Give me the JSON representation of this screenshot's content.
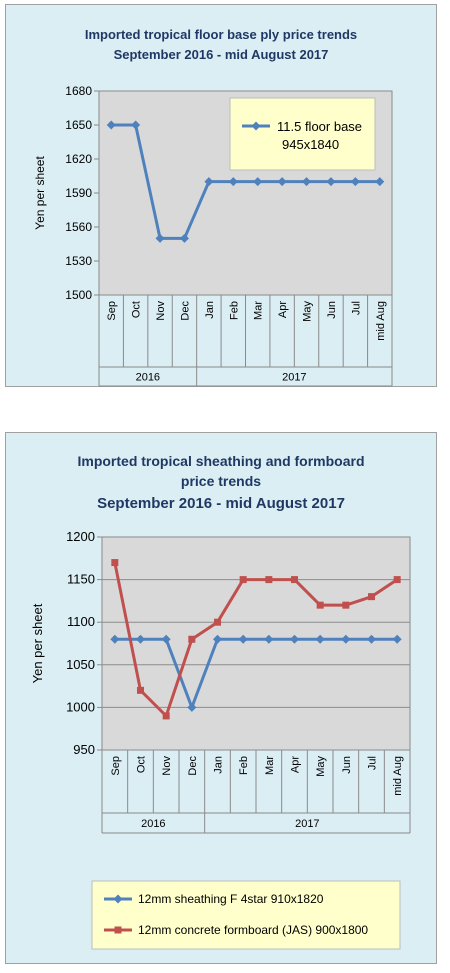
{
  "chart_data": [
    {
      "type": "line",
      "title": "Imported tropical floor base ply price trends",
      "subtitle": "September 2016 - mid August 2017",
      "ylabel": "Yen per sheet",
      "xlabel": "",
      "categories": [
        "Sep",
        "Oct",
        "Nov",
        "Dec",
        "Jan",
        "Feb",
        "Mar",
        "Apr",
        "May",
        "Jun",
        "Jul",
        "mid Aug"
      ],
      "year_groups": [
        {
          "label": "2016",
          "start": 0,
          "end": 3
        },
        {
          "label": "2017",
          "start": 4,
          "end": 11
        }
      ],
      "ylim": [
        1500,
        1680
      ],
      "yticks": [
        1500,
        1530,
        1560,
        1590,
        1620,
        1650,
        1680
      ],
      "grid": false,
      "legend": "top-right",
      "series": [
        {
          "name": "11.5 floor base",
          "name_line2": "945x1840",
          "color": "#4f81bd",
          "marker": "diamond",
          "values": [
            1650,
            1650,
            1550,
            1550,
            1600,
            1600,
            1600,
            1600,
            1600,
            1600,
            1600,
            1600
          ]
        }
      ]
    },
    {
      "type": "line",
      "title": "Imported tropical sheathing and formboard",
      "title_line2": "price trends",
      "subtitle": "September 2016 - mid August 2017",
      "ylabel": "Yen per sheet",
      "xlabel": "",
      "categories": [
        "Sep",
        "Oct",
        "Nov",
        "Dec",
        "Jan",
        "Feb",
        "Mar",
        "Apr",
        "May",
        "Jun",
        "Jul",
        "mid Aug"
      ],
      "year_groups": [
        {
          "label": "2016",
          "start": 0,
          "end": 3
        },
        {
          "label": "2017",
          "start": 4,
          "end": 11
        }
      ],
      "ylim": [
        950,
        1200
      ],
      "yticks": [
        950,
        1000,
        1050,
        1100,
        1150,
        1200
      ],
      "grid": true,
      "legend": "bottom",
      "series": [
        {
          "name": "12mm sheathing F 4star 910x1820",
          "color": "#4f81bd",
          "marker": "diamond",
          "values": [
            1080,
            1080,
            1080,
            1000,
            1080,
            1080,
            1080,
            1080,
            1080,
            1080,
            1080,
            1080
          ]
        },
        {
          "name": "12mm concrete formboard (JAS) 900x1800",
          "color": "#c0504d",
          "marker": "square",
          "values": [
            1170,
            1020,
            990,
            1080,
            1100,
            1150,
            1150,
            1150,
            1120,
            1120,
            1130,
            1150
          ]
        }
      ]
    }
  ]
}
